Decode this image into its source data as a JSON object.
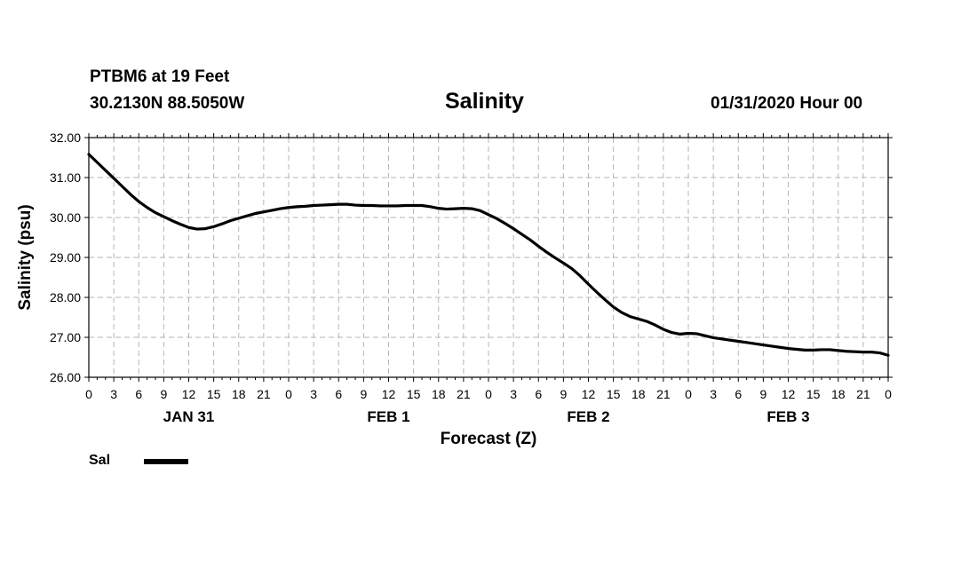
{
  "header": {
    "station": "PTBM6 at 19 Feet",
    "coords": "30.2130N 88.5050W",
    "title": "Salinity",
    "datetime": "01/31/2020 Hour 00"
  },
  "chart_data": {
    "type": "line",
    "title": "Salinity",
    "xlabel": "Forecast (Z)",
    "ylabel": "Salinity (psu)",
    "ylim": [
      26.0,
      32.0
    ],
    "xlim_hours": [
      0,
      96
    ],
    "yticks": [
      "26.00",
      "27.00",
      "28.00",
      "29.00",
      "30.00",
      "31.00",
      "32.00"
    ],
    "xtick_labels": [
      "0",
      "3",
      "6",
      "9",
      "12",
      "15",
      "18",
      "21",
      "0",
      "3",
      "6",
      "9",
      "12",
      "15",
      "18",
      "21",
      "0",
      "3",
      "6",
      "9",
      "12",
      "15",
      "18",
      "21",
      "0",
      "3",
      "6",
      "9",
      "12",
      "15",
      "18",
      "21",
      "0"
    ],
    "day_labels": [
      {
        "label": "JAN 31",
        "hour": 12
      },
      {
        "label": "FEB 1",
        "hour": 36
      },
      {
        "label": "FEB 2",
        "hour": 60
      },
      {
        "label": "FEB 3",
        "hour": 84
      }
    ],
    "grid": true,
    "legend_position": "bottom-left",
    "series": [
      {
        "name": "Sal",
        "color": "#000000",
        "x": [
          0,
          1,
          2,
          3,
          4,
          5,
          6,
          7,
          8,
          9,
          10,
          11,
          12,
          13,
          14,
          15,
          16,
          17,
          18,
          19,
          20,
          21,
          22,
          23,
          24,
          25,
          26,
          27,
          28,
          29,
          30,
          31,
          32,
          33,
          34,
          35,
          36,
          37,
          38,
          39,
          40,
          41,
          42,
          43,
          44,
          45,
          46,
          47,
          48,
          49,
          50,
          51,
          52,
          53,
          54,
          55,
          56,
          57,
          58,
          59,
          60,
          61,
          62,
          63,
          64,
          65,
          66,
          67,
          68,
          69,
          70,
          71,
          72,
          73,
          74,
          75,
          76,
          77,
          78,
          79,
          80,
          81,
          82,
          83,
          84,
          85,
          86,
          87,
          88,
          89,
          90,
          91,
          92,
          93,
          94,
          95,
          96
        ],
        "y": [
          31.58,
          31.38,
          31.18,
          30.98,
          30.78,
          30.58,
          30.4,
          30.25,
          30.12,
          30.02,
          29.92,
          29.83,
          29.75,
          29.71,
          29.72,
          29.77,
          29.84,
          29.92,
          29.98,
          30.04,
          30.1,
          30.14,
          30.18,
          30.22,
          30.25,
          30.27,
          30.28,
          30.3,
          30.31,
          30.32,
          30.33,
          30.33,
          30.31,
          30.3,
          30.3,
          30.29,
          30.29,
          30.29,
          30.3,
          30.3,
          30.3,
          30.27,
          30.23,
          30.21,
          30.22,
          30.23,
          30.22,
          30.17,
          30.07,
          29.97,
          29.85,
          29.72,
          29.58,
          29.44,
          29.28,
          29.13,
          28.99,
          28.86,
          28.72,
          28.54,
          28.33,
          28.13,
          27.94,
          27.76,
          27.62,
          27.52,
          27.46,
          27.4,
          27.31,
          27.2,
          27.12,
          27.08,
          27.1,
          27.09,
          27.04,
          26.99,
          26.96,
          26.93,
          26.9,
          26.87,
          26.84,
          26.81,
          26.78,
          26.75,
          26.72,
          26.7,
          26.68,
          26.68,
          26.69,
          26.69,
          26.67,
          26.65,
          26.64,
          26.63,
          26.63,
          26.61,
          26.55
        ]
      }
    ]
  },
  "legend": {
    "label": "Sal"
  }
}
